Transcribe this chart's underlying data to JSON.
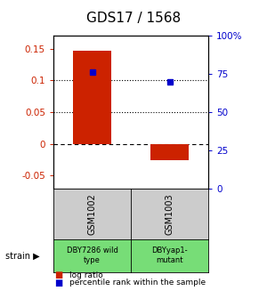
{
  "title": "GDS17 / 1568",
  "samples": [
    "GSM1002",
    "GSM1003"
  ],
  "log_ratios": [
    0.147,
    -0.025
  ],
  "percentile_ranks": [
    76,
    70
  ],
  "strain_labels": [
    "DBY7286 wild\ntype",
    "DBYyap1-\nmutant"
  ],
  "ylim_left": [
    -0.07,
    0.17
  ],
  "ylim_right": [
    0,
    100
  ],
  "left_yticks": [
    -0.05,
    0,
    0.05,
    0.1,
    0.15
  ],
  "right_yticks": [
    0,
    25,
    50,
    75,
    100
  ],
  "left_tick_labels": [
    "-0.05",
    "0",
    "0.05",
    "0.1",
    "0.15"
  ],
  "right_tick_labels": [
    "0",
    "25",
    "50",
    "75",
    "100%"
  ],
  "hlines_dotted": [
    0.1,
    0.05
  ],
  "hline_dashed": 0.0,
  "bar_color": "#cc2200",
  "marker_color": "#0000cc",
  "gray_bg": "#cccccc",
  "green_bg": "#77dd77",
  "bar_width": 0.25,
  "left_axis_color": "#cc2200",
  "right_axis_color": "#0000cc",
  "title_fontsize": 11,
  "tick_fontsize": 7.5,
  "bar_positions": [
    0.25,
    0.75
  ]
}
